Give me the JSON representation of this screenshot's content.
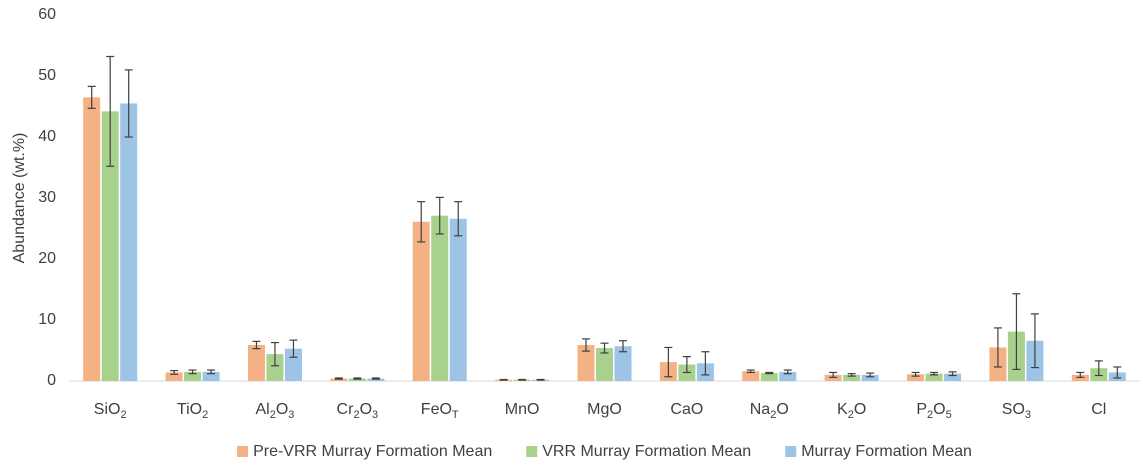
{
  "chart_data": {
    "type": "bar",
    "y_label": "Abundance (wt.%)",
    "categories": [
      "SiO2",
      "TiO2",
      "Al2O3",
      "Cr2O3",
      "FeOT",
      "MnO",
      "MgO",
      "CaO",
      "Na2O",
      "K2O",
      "P2O5",
      "SO3",
      "Cl"
    ],
    "series": [
      {
        "name": "Pre-VRR Murray Formation Mean",
        "color": "#f4b183",
        "values": [
          46.5,
          1.4,
          5.9,
          0.4,
          26.1,
          0.2,
          5.9,
          3.1,
          1.6,
          1.0,
          1.1,
          5.5,
          1.0
        ],
        "errors": [
          1.8,
          0.3,
          0.6,
          0.1,
          3.3,
          0.05,
          1.0,
          2.4,
          0.2,
          0.4,
          0.3,
          3.2,
          0.4
        ]
      },
      {
        "name": "VRR Murray Formation Mean",
        "color": "#a9d18e",
        "values": [
          44.2,
          1.5,
          4.4,
          0.4,
          27.1,
          0.2,
          5.4,
          2.7,
          1.3,
          1.0,
          1.2,
          8.1,
          2.1
        ],
        "errors": [
          9.0,
          0.3,
          1.9,
          0.1,
          3.0,
          0.05,
          0.8,
          1.3,
          0.1,
          0.2,
          0.2,
          6.2,
          1.2
        ]
      },
      {
        "name": "Murray Formation Mean",
        "color": "#9dc3e6",
        "values": [
          45.5,
          1.5,
          5.3,
          0.4,
          26.6,
          0.2,
          5.7,
          2.9,
          1.5,
          1.0,
          1.2,
          6.6,
          1.4
        ],
        "errors": [
          5.5,
          0.3,
          1.4,
          0.1,
          2.8,
          0.05,
          0.9,
          1.9,
          0.3,
          0.3,
          0.3,
          4.4,
          0.9
        ]
      }
    ],
    "ylim": [
      0,
      60
    ],
    "yticks": [
      0,
      10,
      20,
      30,
      40,
      50,
      60
    ],
    "grid": false,
    "legend": "bottom"
  }
}
